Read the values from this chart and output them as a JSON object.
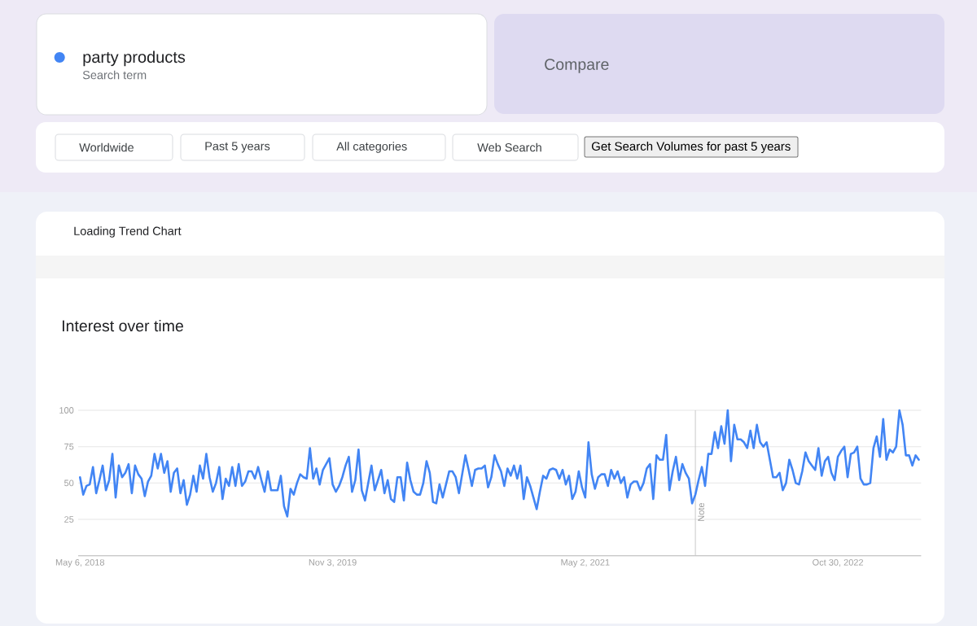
{
  "chart_data": {
    "type": "line",
    "title": "Interest over time",
    "annotations": [
      "Search term",
      "Compare",
      "Worldwide",
      "Past 5 years",
      "All categories",
      "Web Search",
      "Get Search Volumes for past 5 years",
      "Loading Trend Chart"
    ],
    "x": [
      "2018-05-06",
      "2018-05-13",
      "2018-05-20",
      "2018-05-27",
      "2018-06-03",
      "2018-06-10",
      "2018-06-17",
      "2018-06-24",
      "2018-07-01",
      "2018-07-08",
      "2018-07-15",
      "2018-07-22",
      "2018-07-29",
      "2018-08-05",
      "2018-08-12",
      "2018-08-19",
      "2018-08-26",
      "2018-09-02",
      "2018-09-09",
      "2018-09-16",
      "2018-09-23",
      "2018-09-30",
      "2018-10-07",
      "2018-10-14",
      "2018-10-21",
      "2018-10-28",
      "2018-11-04",
      "2018-11-11",
      "2018-11-18",
      "2018-11-25",
      "2018-12-02",
      "2018-12-09",
      "2018-12-16",
      "2018-12-23",
      "2018-12-30",
      "2019-01-06",
      "2019-01-13",
      "2019-01-20",
      "2019-01-27",
      "2019-02-03",
      "2019-02-10",
      "2019-02-17",
      "2019-02-24",
      "2019-03-03",
      "2019-03-10",
      "2019-03-17",
      "2019-03-24",
      "2019-03-31",
      "2019-04-07",
      "2019-04-14",
      "2019-04-21",
      "2019-04-28",
      "2019-05-05",
      "2019-05-12",
      "2019-05-19",
      "2019-05-26",
      "2019-06-02",
      "2019-06-09",
      "2019-06-16",
      "2019-06-23",
      "2019-06-30",
      "2019-07-07",
      "2019-07-14",
      "2019-07-21",
      "2019-07-28",
      "2019-08-04",
      "2019-08-11",
      "2019-08-18",
      "2019-08-25",
      "2019-09-01",
      "2019-09-08",
      "2019-09-15",
      "2019-09-22",
      "2019-09-29",
      "2019-10-06",
      "2019-10-13",
      "2019-10-20",
      "2019-10-27",
      "2019-11-03",
      "2019-11-10",
      "2019-11-17",
      "2019-11-24",
      "2019-12-01",
      "2019-12-08",
      "2019-12-15",
      "2019-12-22",
      "2019-12-29",
      "2020-01-05",
      "2020-01-12",
      "2020-01-19",
      "2020-01-26",
      "2020-02-02",
      "2020-02-09",
      "2020-02-16",
      "2020-02-23",
      "2020-03-01",
      "2020-03-08",
      "2020-03-15",
      "2020-03-22",
      "2020-03-29",
      "2020-04-05",
      "2020-04-12",
      "2020-04-19",
      "2020-04-26",
      "2020-05-03",
      "2020-05-10",
      "2020-05-17",
      "2020-05-24",
      "2020-05-31",
      "2020-06-07",
      "2020-06-14",
      "2020-06-21",
      "2020-06-28",
      "2020-07-05",
      "2020-07-12",
      "2020-07-19",
      "2020-07-26",
      "2020-08-02",
      "2020-08-09",
      "2020-08-16",
      "2020-08-23",
      "2020-08-30",
      "2020-09-06",
      "2020-09-13",
      "2020-09-20",
      "2020-09-27",
      "2020-10-04",
      "2020-10-11",
      "2020-10-18",
      "2020-10-25",
      "2020-11-01",
      "2020-11-08",
      "2020-11-15",
      "2020-11-22",
      "2020-11-29",
      "2020-12-06",
      "2020-12-13",
      "2020-12-20",
      "2020-12-27",
      "2021-01-03",
      "2021-01-10",
      "2021-01-17",
      "2021-01-24",
      "2021-01-31",
      "2021-02-07",
      "2021-02-14",
      "2021-02-21",
      "2021-02-28",
      "2021-03-07",
      "2021-03-14",
      "2021-03-21",
      "2021-03-28",
      "2021-04-04",
      "2021-04-11",
      "2021-04-18",
      "2021-04-25",
      "2021-05-02",
      "2021-05-09",
      "2021-05-16",
      "2021-05-23",
      "2021-05-30",
      "2021-06-06",
      "2021-06-13",
      "2021-06-20",
      "2021-06-27",
      "2021-07-04",
      "2021-07-11",
      "2021-07-18",
      "2021-07-25",
      "2021-08-01",
      "2021-08-08",
      "2021-08-15",
      "2021-08-22",
      "2021-08-29",
      "2021-09-05",
      "2021-09-12",
      "2021-09-19",
      "2021-09-26",
      "2021-10-03",
      "2021-10-10",
      "2021-10-17",
      "2021-10-24",
      "2021-10-31",
      "2021-11-07",
      "2021-11-14",
      "2021-11-21",
      "2021-11-28",
      "2021-12-05",
      "2021-12-12",
      "2021-12-19",
      "2021-12-26",
      "2022-01-02",
      "2022-01-09",
      "2022-01-16",
      "2022-01-23",
      "2022-01-30",
      "2022-02-06",
      "2022-02-13",
      "2022-02-20",
      "2022-02-27",
      "2022-03-06",
      "2022-03-13",
      "2022-03-20",
      "2022-03-27",
      "2022-04-03",
      "2022-04-10",
      "2022-04-17",
      "2022-04-24",
      "2022-05-01",
      "2022-05-08",
      "2022-05-15",
      "2022-05-22",
      "2022-05-29",
      "2022-06-05",
      "2022-06-12",
      "2022-06-19",
      "2022-06-26",
      "2022-07-03",
      "2022-07-10",
      "2022-07-17",
      "2022-07-24",
      "2022-07-31",
      "2022-08-07",
      "2022-08-14",
      "2022-08-21",
      "2022-08-28",
      "2022-09-04",
      "2022-09-11",
      "2022-09-18",
      "2022-09-25",
      "2022-10-02",
      "2022-10-09",
      "2022-10-16",
      "2022-10-23",
      "2022-10-30",
      "2022-11-06",
      "2022-11-13",
      "2022-11-20",
      "2022-11-27",
      "2022-12-04",
      "2022-12-11",
      "2022-12-18",
      "2022-12-25",
      "2023-01-01",
      "2023-01-08",
      "2023-01-15",
      "2023-01-22",
      "2023-01-29",
      "2023-02-05",
      "2023-02-12",
      "2023-02-19",
      "2023-02-26",
      "2023-03-05",
      "2023-03-12",
      "2023-03-19",
      "2023-03-26",
      "2023-04-02",
      "2023-04-09",
      "2023-04-16",
      "2023-04-23"
    ],
    "series": [
      {
        "name": "party products",
        "color": "#4285f4",
        "values": [
          54,
          42,
          48,
          49,
          61,
          43,
          52,
          62,
          45,
          52,
          70,
          40,
          62,
          54,
          57,
          63,
          43,
          62,
          56,
          53,
          41,
          51,
          55,
          70,
          60,
          70,
          57,
          65,
          44,
          57,
          60,
          43,
          52,
          35,
          42,
          55,
          44,
          62,
          53,
          70,
          54,
          44,
          50,
          61,
          39,
          53,
          48,
          61,
          48,
          63,
          48,
          51,
          58,
          58,
          53,
          61,
          52,
          44,
          58,
          45,
          45,
          45,
          55,
          34,
          27,
          46,
          42,
          50,
          56,
          54,
          53,
          74,
          53,
          60,
          49,
          59,
          63,
          67,
          49,
          44,
          48,
          54,
          62,
          68,
          44,
          52,
          73,
          45,
          38,
          50,
          62,
          45,
          52,
          59,
          43,
          52,
          39,
          37,
          54,
          54,
          38,
          64,
          52,
          44,
          42,
          42,
          50,
          65,
          57,
          37,
          36,
          49,
          40,
          49,
          58,
          58,
          54,
          43,
          56,
          69,
          59,
          48,
          59,
          60,
          60,
          62,
          47,
          54,
          69,
          63,
          58,
          48,
          60,
          55,
          62,
          53,
          62,
          39,
          54,
          48,
          40,
          32,
          44,
          55,
          53,
          59,
          60,
          59,
          53,
          59,
          49,
          55,
          39,
          44,
          58,
          47,
          40,
          78,
          56,
          46,
          54,
          56,
          56,
          48,
          59,
          53,
          58,
          50,
          54,
          40,
          49,
          51,
          51,
          45,
          50,
          60,
          63,
          39,
          69,
          66,
          66,
          83,
          45,
          58,
          68,
          52,
          63,
          57,
          53,
          36,
          42,
          52,
          61,
          48,
          70,
          70,
          85,
          74,
          89,
          77,
          100,
          65,
          90,
          80,
          80,
          78,
          74,
          86,
          74,
          90,
          78,
          75,
          78,
          66,
          54,
          54,
          57,
          45,
          50,
          66,
          59,
          50,
          49,
          58,
          71,
          65,
          62,
          59,
          74,
          55,
          65,
          68,
          57,
          52,
          68,
          72,
          75,
          54,
          70,
          71,
          75,
          53,
          49,
          49,
          50,
          74,
          82,
          68,
          94,
          66,
          73,
          71,
          75,
          100,
          90,
          69,
          69,
          62,
          69,
          66
        ]
      }
    ],
    "xlim": [
      "2018-05-02",
      "2023-04-28"
    ],
    "ylim": [
      0,
      100
    ],
    "xticks": [
      {
        "value": "2018-05-06",
        "label": "May 6, 2018"
      },
      {
        "value": "2019-11-03",
        "label": "Nov 3, 2019"
      },
      {
        "value": "2021-05-02",
        "label": "May 2, 2021"
      },
      {
        "value": "2022-10-30",
        "label": "Oct 30, 2022"
      }
    ],
    "yticks": [
      25,
      50,
      75,
      100
    ],
    "grid": "y",
    "legend": "top left",
    "ref_lines": [
      {
        "axis": "x",
        "value": "2021-12-26",
        "label": "Note",
        "color": "#c8c8c8"
      }
    ]
  }
}
